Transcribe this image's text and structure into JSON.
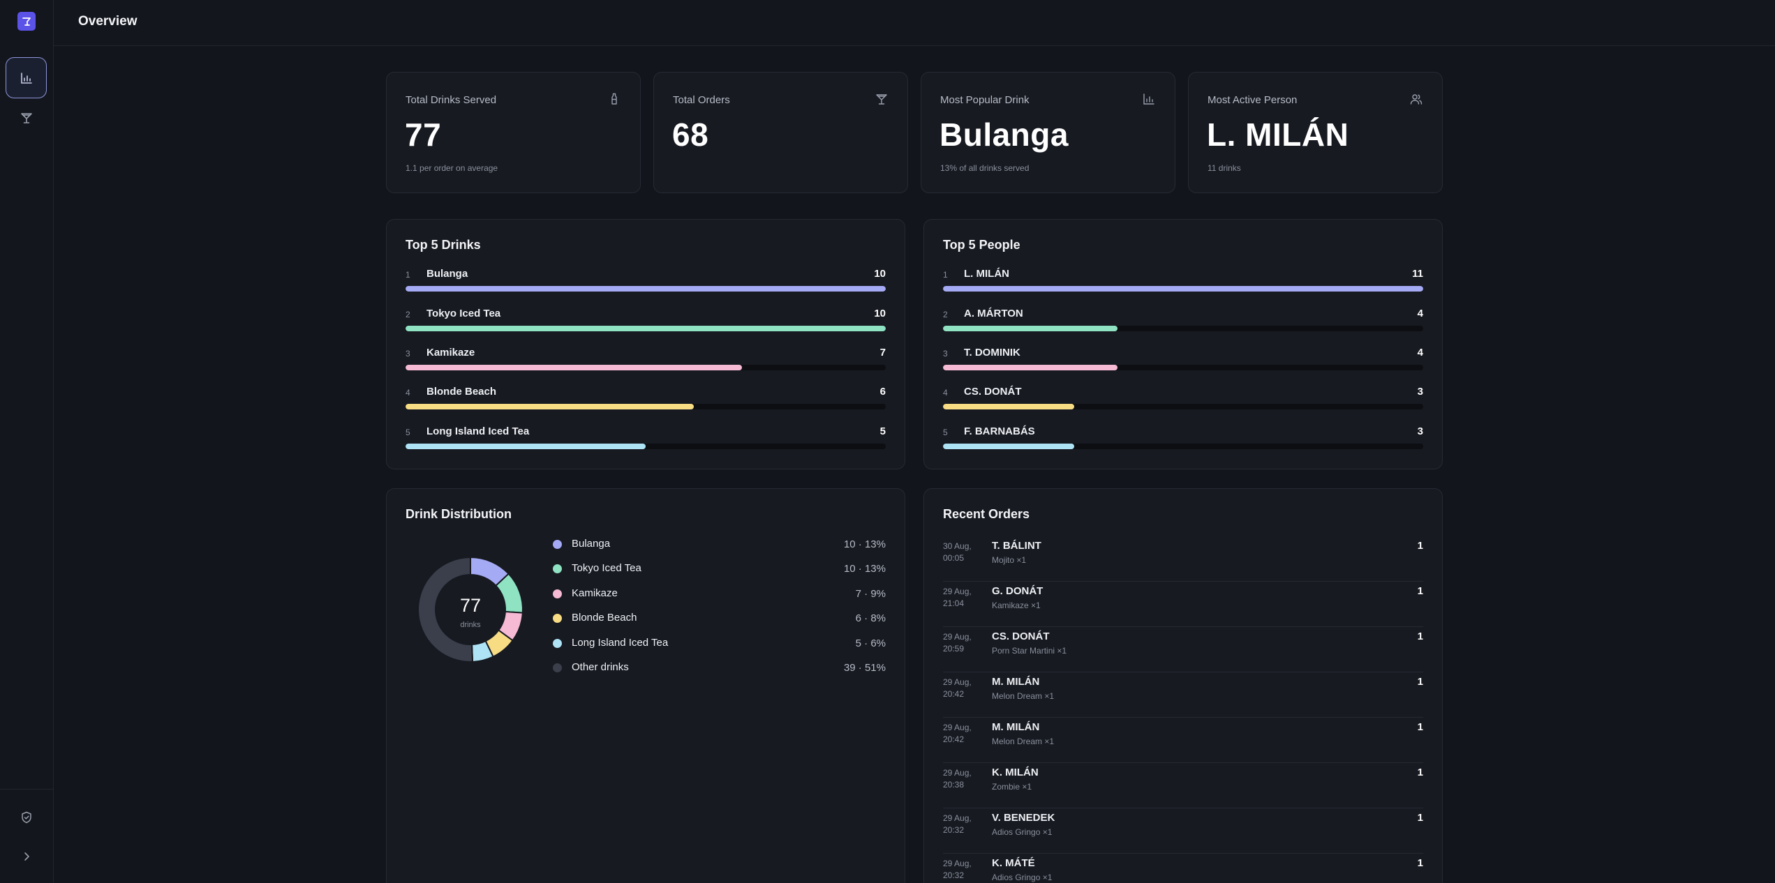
{
  "app": {
    "page_title": "Overview",
    "icons": {
      "logo": "cocktail-logo-icon",
      "nav_overview": "bar-chart-icon",
      "nav_drinks": "cocktail-glass-icon",
      "admin": "shield-check-icon",
      "expand": "chevron-right-icon"
    },
    "accent": "#5b52e8"
  },
  "stats": [
    {
      "label": "Total Drinks Served",
      "value": "77",
      "sub": "1.1 per order on average",
      "icon": "bottle-icon"
    },
    {
      "label": "Total Orders",
      "value": "68",
      "sub": "",
      "icon": "cocktail-glass-icon"
    },
    {
      "label": "Most Popular Drink",
      "value": "Bulanga",
      "sub": "13% of all drinks served",
      "icon": "bar-chart-icon"
    },
    {
      "label": "Most Active Person",
      "value": "L. MILÁN",
      "sub": "11 drinks",
      "icon": "users-icon"
    }
  ],
  "top_drinks": {
    "title": "Top 5 Drinks",
    "items": [
      {
        "rank": "1",
        "name": "Bulanga",
        "count": "10",
        "fraction": 1.0,
        "color": "#a5aaf5"
      },
      {
        "rank": "2",
        "name": "Tokyo Iced Tea",
        "count": "10",
        "fraction": 1.0,
        "color": "#8fe3c2"
      },
      {
        "rank": "3",
        "name": "Kamikaze",
        "count": "7",
        "fraction": 0.7,
        "color": "#f6bad4"
      },
      {
        "rank": "4",
        "name": "Blonde Beach",
        "count": "6",
        "fraction": 0.6,
        "color": "#f8dc84"
      },
      {
        "rank": "5",
        "name": "Long Island Iced Tea",
        "count": "5",
        "fraction": 0.5,
        "color": "#aee3f6"
      }
    ]
  },
  "top_people": {
    "title": "Top 5 People",
    "items": [
      {
        "rank": "1",
        "name": "L. MILÁN",
        "count": "11",
        "fraction": 1.0,
        "color": "#a5aaf5"
      },
      {
        "rank": "2",
        "name": "A. MÁRTON",
        "count": "4",
        "fraction": 0.3636,
        "color": "#8fe3c2"
      },
      {
        "rank": "3",
        "name": "T. DOMINIK",
        "count": "4",
        "fraction": 0.3636,
        "color": "#f6bad4"
      },
      {
        "rank": "4",
        "name": "CS. DONÁT",
        "count": "3",
        "fraction": 0.2727,
        "color": "#f8dc84"
      },
      {
        "rank": "5",
        "name": "F. BARNABÁS",
        "count": "3",
        "fraction": 0.2727,
        "color": "#aee3f6"
      }
    ]
  },
  "distribution": {
    "title": "Drink Distribution",
    "center_value": "77",
    "center_label": "drinks",
    "items": [
      {
        "name": "Bulanga",
        "value_text": "10 · 13%",
        "color": "#a5aaf5"
      },
      {
        "name": "Tokyo Iced Tea",
        "value_text": "10 · 13%",
        "color": "#8fe3c2"
      },
      {
        "name": "Kamikaze",
        "value_text": "7 · 9%",
        "color": "#f6bad4"
      },
      {
        "name": "Blonde Beach",
        "value_text": "6 · 8%",
        "color": "#f8dc84"
      },
      {
        "name": "Long Island Iced Tea",
        "value_text": "5 · 6%",
        "color": "#aee3f6"
      },
      {
        "name": "Other drinks",
        "value_text": "39 · 51%",
        "color": "#3a3f4b"
      }
    ]
  },
  "chart_data": {
    "type": "pie",
    "categories": [
      "Bulanga",
      "Tokyo Iced Tea",
      "Kamikaze",
      "Blonde Beach",
      "Long Island Iced Tea",
      "Other drinks"
    ],
    "values": [
      10,
      10,
      7,
      6,
      5,
      39
    ],
    "title": "Drink Distribution",
    "center_text": "77 drinks"
  },
  "recent_orders": {
    "title": "Recent Orders",
    "items": [
      {
        "date": "30 Aug,",
        "time": "00:05",
        "person": "T. BÁLINT",
        "item": "Mojito ×1",
        "qty": "1"
      },
      {
        "date": "29 Aug,",
        "time": "21:04",
        "person": "G. DONÁT",
        "item": "Kamikaze ×1",
        "qty": "1"
      },
      {
        "date": "29 Aug,",
        "time": "20:59",
        "person": "CS. DONÁT",
        "item": "Porn Star Martini ×1",
        "qty": "1"
      },
      {
        "date": "29 Aug,",
        "time": "20:42",
        "person": "M. MILÁN",
        "item": "Melon Dream ×1",
        "qty": "1"
      },
      {
        "date": "29 Aug,",
        "time": "20:42",
        "person": "M. MILÁN",
        "item": "Melon Dream ×1",
        "qty": "1"
      },
      {
        "date": "29 Aug,",
        "time": "20:38",
        "person": "K. MILÁN",
        "item": "Zombie ×1",
        "qty": "1"
      },
      {
        "date": "29 Aug,",
        "time": "20:32",
        "person": "V. BENEDEK",
        "item": "Adios Gringo ×1",
        "qty": "1"
      },
      {
        "date": "29 Aug,",
        "time": "20:32",
        "person": "K. MÁTÉ",
        "item": "Adios Gringo ×1",
        "qty": "1"
      }
    ]
  }
}
